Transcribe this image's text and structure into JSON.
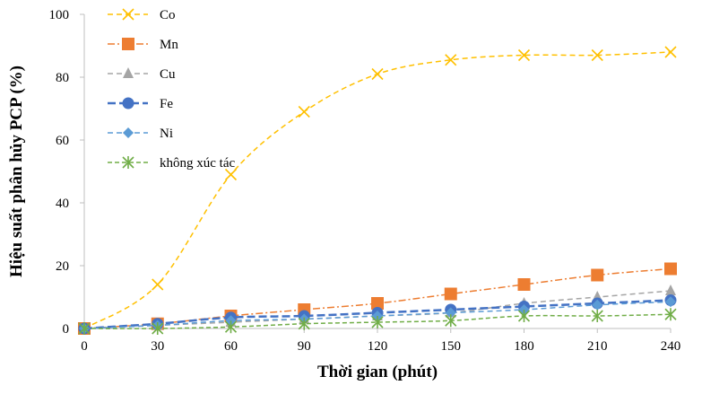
{
  "chart_data": {
    "type": "line",
    "title": "",
    "xlabel": "Thời gian (phút)",
    "ylabel": "Hiệu suất phân hủy PCP (%)",
    "x": [
      0,
      30,
      60,
      90,
      120,
      150,
      180,
      210,
      240
    ],
    "xlim": [
      0,
      240
    ],
    "ylim": [
      0,
      100
    ],
    "xticks": [
      0,
      30,
      60,
      90,
      120,
      150,
      180,
      210,
      240
    ],
    "yticks": [
      0,
      20,
      40,
      60,
      80,
      100
    ],
    "grid": false,
    "legend_position": "top-left",
    "series": [
      {
        "name": "Co",
        "color": "#FFC000",
        "marker": "x",
        "dash": "6,4",
        "values": [
          0,
          14,
          49,
          69,
          81,
          85.5,
          87,
          87,
          88
        ]
      },
      {
        "name": "Mn",
        "color": "#ED7D31",
        "marker": "square",
        "dash": "8,3,2,3",
        "values": [
          0,
          1.5,
          4,
          6,
          8,
          11,
          14,
          17,
          19
        ]
      },
      {
        "name": "Cu",
        "color": "#A5A5A5",
        "marker": "triangle",
        "dash": "6,4",
        "values": [
          0,
          1,
          2,
          3,
          4,
          5,
          8,
          10,
          12
        ]
      },
      {
        "name": "Fe",
        "color": "#4472C4",
        "marker": "circle",
        "dash": "9,4",
        "values": [
          0,
          1.5,
          3.5,
          4,
          5,
          6,
          7,
          8,
          9
        ]
      },
      {
        "name": "Ni",
        "color": "#5B9BD5",
        "marker": "diamond",
        "dash": "6,4",
        "values": [
          0,
          1,
          2.5,
          3,
          4,
          5,
          6,
          7.5,
          8.5
        ]
      },
      {
        "name": "không xúc tác",
        "color": "#70AD47",
        "marker": "asterisk",
        "dash": "5,3",
        "values": [
          0,
          0,
          0.5,
          1.5,
          2,
          2.5,
          4,
          4,
          4.5
        ]
      }
    ]
  }
}
